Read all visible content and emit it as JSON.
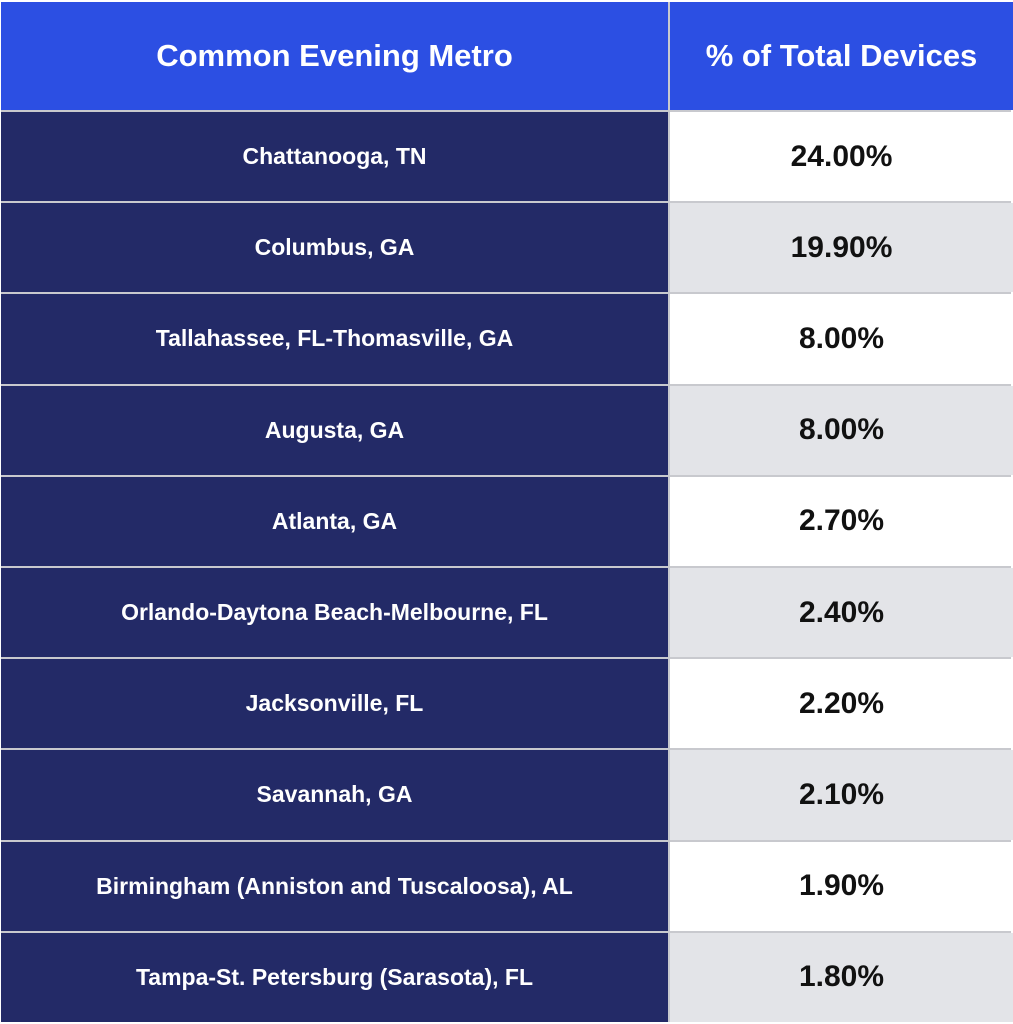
{
  "chart_data": {
    "type": "table",
    "columns": [
      "Common Evening Metro",
      "% of Total Devices"
    ],
    "rows": [
      {
        "metro": "Chattanooga, TN",
        "pct": "24.00%"
      },
      {
        "metro": "Columbus, GA",
        "pct": "19.90%"
      },
      {
        "metro": "Tallahassee, FL-Thomasville, GA",
        "pct": "8.00%"
      },
      {
        "metro": "Augusta, GA",
        "pct": "8.00%"
      },
      {
        "metro": "Atlanta, GA",
        "pct": "2.70%"
      },
      {
        "metro": "Orlando-Daytona Beach-Melbourne, FL",
        "pct": "2.40%"
      },
      {
        "metro": "Jacksonville, FL",
        "pct": "2.20%"
      },
      {
        "metro": "Savannah, GA",
        "pct": "2.10%"
      },
      {
        "metro": "Birmingham (Anniston and Tuscaloosa), AL",
        "pct": "1.90%"
      },
      {
        "metro": "Tampa-St. Petersburg (Sarasota), FL",
        "pct": "1.80%"
      }
    ]
  },
  "colors": {
    "header_bg": "#2c4fe3",
    "metro_bg": "#232a67",
    "row_alt_bg": "#e3e4e8",
    "row_bg": "#ffffff",
    "grid_line": "#c8c9ce"
  }
}
